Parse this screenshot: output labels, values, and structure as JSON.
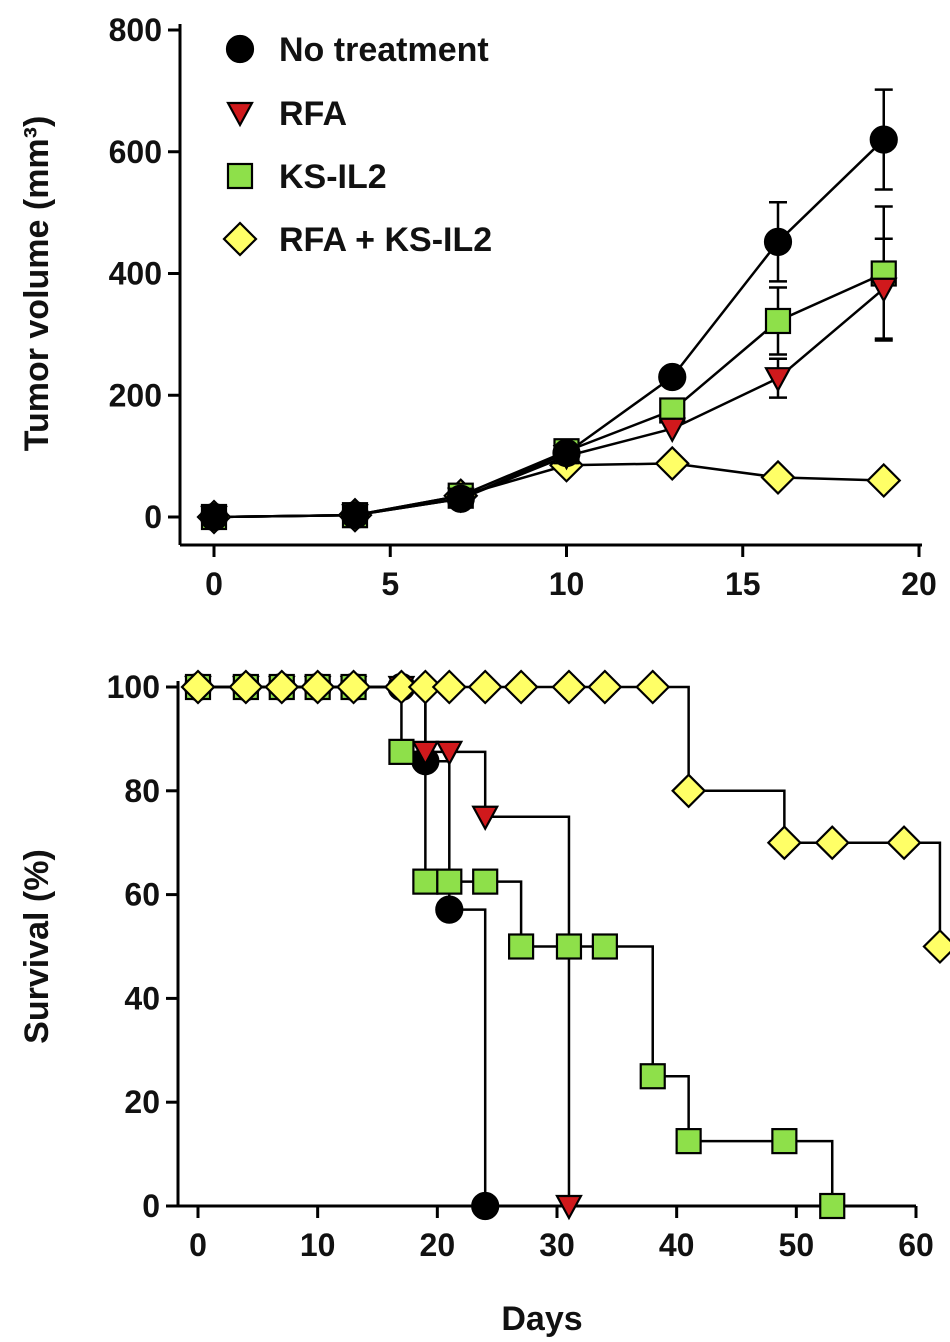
{
  "chart_data": [
    {
      "type": "line",
      "xlabel": "",
      "ylabel": "Tumor volume (mm³)",
      "xlim": [
        0,
        20
      ],
      "ylim": [
        0,
        800
      ],
      "xticks": [
        0,
        5,
        10,
        15,
        20
      ],
      "yticks": [
        0,
        200,
        400,
        600,
        800
      ],
      "legend": "top-left",
      "grid": false,
      "series": [
        {
          "name": "No treatment",
          "marker": "circle",
          "color": "#000000",
          "x": [
            0,
            4,
            7,
            10,
            13,
            16,
            19
          ],
          "y": [
            0,
            3,
            30,
            105,
            230,
            452,
            620
          ],
          "error": [
            0,
            0,
            0,
            0,
            0,
            65,
            82
          ]
        },
        {
          "name": "RFA",
          "marker": "triangle-down",
          "color": "#d0191c",
          "x": [
            0,
            4,
            7,
            10,
            13,
            16,
            19
          ],
          "y": [
            0,
            3,
            30,
            100,
            145,
            228,
            375
          ],
          "error": [
            0,
            0,
            0,
            0,
            0,
            32,
            82
          ]
        },
        {
          "name": "KS-IL2",
          "marker": "square",
          "color": "#8ee04a",
          "x": [
            0,
            4,
            7,
            10,
            13,
            16,
            19
          ],
          "y": [
            0,
            3,
            35,
            108,
            175,
            322,
            400
          ],
          "error": [
            0,
            0,
            0,
            0,
            0,
            55,
            110
          ]
        },
        {
          "name": "RFA + KS-IL2",
          "marker": "diamond",
          "color": "#ffff66",
          "x": [
            0,
            4,
            7,
            10,
            13,
            16,
            19
          ],
          "y": [
            0,
            3,
            35,
            85,
            88,
            65,
            60
          ],
          "error": [
            0,
            0,
            0,
            0,
            0,
            0,
            0
          ]
        }
      ]
    },
    {
      "type": "line",
      "step": true,
      "xlabel": "Days",
      "ylabel": "Survival (%)",
      "xlim": [
        0,
        60
      ],
      "ylim": [
        0,
        100
      ],
      "xticks": [
        0,
        10,
        20,
        30,
        40,
        50,
        60
      ],
      "yticks": [
        0,
        20,
        40,
        60,
        80,
        100
      ],
      "grid": false,
      "series": [
        {
          "name": "No treatment",
          "marker": "circle",
          "color": "#000000",
          "x": [
            0,
            4,
            7,
            10,
            13,
            17,
            19,
            21,
            24
          ],
          "y": [
            100,
            100,
            100,
            100,
            100,
            100,
            85.7,
            57.1,
            0
          ]
        },
        {
          "name": "RFA",
          "marker": "triangle-down",
          "color": "#d0191c",
          "x": [
            0,
            4,
            7,
            10,
            13,
            17,
            19,
            21,
            24,
            31
          ],
          "y": [
            100,
            100,
            100,
            100,
            100,
            100,
            87.5,
            87.5,
            75,
            0
          ]
        },
        {
          "name": "KS-IL2",
          "marker": "square",
          "color": "#8ee04a",
          "x": [
            0,
            4,
            7,
            10,
            13,
            17,
            19,
            21,
            24,
            27,
            31,
            34,
            38,
            41,
            49,
            53
          ],
          "y": [
            100,
            100,
            100,
            100,
            100,
            87.5,
            62.5,
            62.5,
            62.5,
            50,
            50,
            50,
            25,
            12.5,
            12.5,
            0
          ]
        },
        {
          "name": "RFA + KS-IL2",
          "marker": "diamond",
          "color": "#ffff66",
          "x": [
            0,
            4,
            7,
            10,
            13,
            17,
            19,
            21,
            24,
            27,
            31,
            34,
            38,
            41,
            49,
            53,
            59,
            62
          ],
          "y": [
            100,
            100,
            100,
            100,
            100,
            100,
            100,
            100,
            100,
            100,
            100,
            100,
            100,
            80,
            70,
            70,
            70,
            50
          ]
        }
      ]
    }
  ]
}
